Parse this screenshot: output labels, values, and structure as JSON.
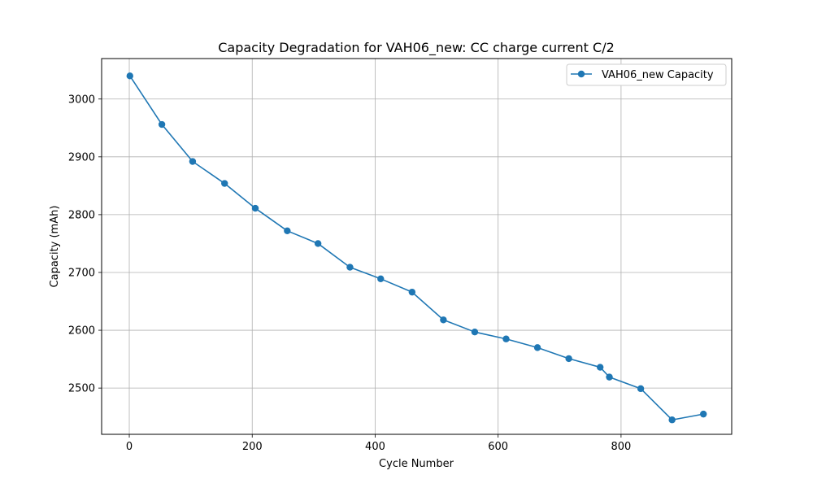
{
  "chart_data": {
    "type": "line",
    "title": "Capacity Degradation for VAH06_new: CC charge current C/2",
    "xlabel": "Cycle Number",
    "ylabel": "Capacity (mAh)",
    "xlim": [
      -45,
      980
    ],
    "ylim": [
      2420,
      3070
    ],
    "xticks": [
      0,
      200,
      400,
      600,
      800
    ],
    "yticks": [
      2500,
      2600,
      2700,
      2800,
      2900,
      3000
    ],
    "grid": true,
    "legend_position": "top-right",
    "series": [
      {
        "name": "VAH06_new Capacity",
        "color": "#1f77b4",
        "marker": "circle",
        "x": [
          1,
          53,
          103,
          155,
          205,
          257,
          307,
          359,
          409,
          460,
          511,
          562,
          613,
          664,
          715,
          766,
          781,
          832,
          883,
          934
        ],
        "y": [
          3040,
          2956,
          2892,
          2854,
          2811,
          2772,
          2750,
          2709,
          2689,
          2666,
          2618,
          2597,
          2585,
          2570,
          2551,
          2536,
          2519,
          2499,
          2445,
          2455
        ]
      }
    ]
  }
}
